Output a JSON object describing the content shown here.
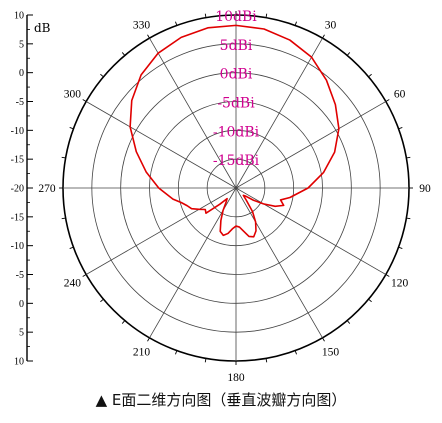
{
  "caption": "▲ E面二维方向图（垂直波瓣方向图）",
  "chart_data": {
    "type": "polar-line",
    "unit_label": "dB",
    "r_range": [
      -20,
      10
    ],
    "rings": [
      -20,
      -15,
      -10,
      -5,
      0,
      5,
      10
    ],
    "ring_labels": [
      {
        "value": 10,
        "text": "10dBi"
      },
      {
        "value": 5,
        "text": "5dBi"
      },
      {
        "value": 0,
        "text": "0dBi"
      },
      {
        "value": -5,
        "text": "-5dBi"
      },
      {
        "value": -10,
        "text": "-10dBi"
      },
      {
        "value": -15,
        "text": "-15dBi"
      }
    ],
    "angle_ticks": [
      0,
      30,
      60,
      90,
      120,
      150,
      180,
      210,
      240,
      270,
      300,
      330
    ],
    "angle_labels": [
      "30",
      "60",
      "90",
      "120",
      "150",
      "180",
      "210",
      "240",
      "270",
      "300",
      "330"
    ],
    "scale_ticks": [
      "10",
      "5",
      "0",
      "-5",
      "-10",
      "-15",
      "-20",
      "-15",
      "-10",
      "-5",
      "0",
      "5",
      "10"
    ],
    "series": [
      {
        "color": "#e00000",
        "points": [
          [
            0,
            8.2
          ],
          [
            10,
            8.0
          ],
          [
            20,
            7.3
          ],
          [
            30,
            6.2
          ],
          [
            40,
            4.4
          ],
          [
            50,
            2.5
          ],
          [
            60,
            0.6
          ],
          [
            70,
            -1.8
          ],
          [
            80,
            -4.6
          ],
          [
            90,
            -7.5
          ],
          [
            100,
            -10.5
          ],
          [
            105,
            -12.0
          ],
          [
            110,
            -11.2
          ],
          [
            115,
            -12.5
          ],
          [
            120,
            -14.5
          ],
          [
            125,
            -16.3
          ],
          [
            130,
            -17.8
          ],
          [
            135,
            -18.2
          ],
          [
            140,
            -17.2
          ],
          [
            145,
            -15.0
          ],
          [
            150,
            -13.2
          ],
          [
            155,
            -11.8
          ],
          [
            160,
            -11.0
          ],
          [
            165,
            -11.3
          ],
          [
            170,
            -12.4
          ],
          [
            175,
            -13.2
          ],
          [
            180,
            -13.4
          ],
          [
            185,
            -12.9
          ],
          [
            190,
            -12.0
          ],
          [
            195,
            -11.5
          ],
          [
            200,
            -12.0
          ],
          [
            205,
            -13.8
          ],
          [
            210,
            -15.5
          ],
          [
            215,
            -17.0
          ],
          [
            220,
            -17.6
          ],
          [
            225,
            -16.0
          ],
          [
            230,
            -13.2
          ],
          [
            235,
            -13.5
          ],
          [
            240,
            -12.6
          ],
          [
            245,
            -11.5
          ],
          [
            250,
            -11.0
          ],
          [
            255,
            -10.2
          ],
          [
            260,
            -8.9
          ],
          [
            270,
            -6.6
          ],
          [
            280,
            -4.2
          ],
          [
            290,
            -1.6
          ],
          [
            300,
            1.2
          ],
          [
            310,
            3.6
          ],
          [
            320,
            5.6
          ],
          [
            330,
            7.0
          ],
          [
            340,
            7.8
          ],
          [
            350,
            8.2
          ],
          [
            360,
            8.2
          ]
        ]
      }
    ]
  }
}
